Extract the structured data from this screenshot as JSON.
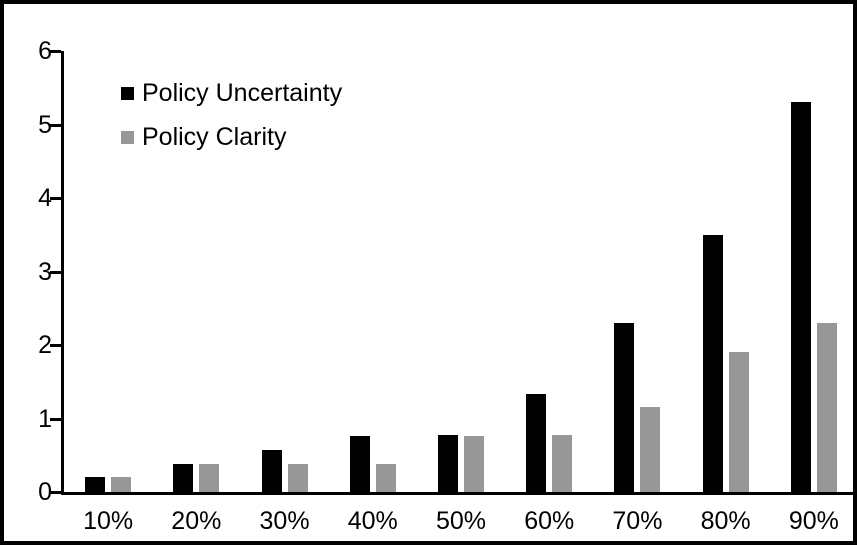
{
  "figure": {
    "background_color": "#ffffff",
    "frame_color": "#000000",
    "axis_color": "#000000",
    "text_color": "#000000"
  },
  "legend": {
    "items": [
      {
        "label": "Policy Uncertainty",
        "color": "#000000"
      },
      {
        "label": "Policy Clarity",
        "color": "#979797"
      }
    ]
  },
  "chart_data": {
    "type": "bar",
    "title": "",
    "xlabel": "",
    "ylabel": "",
    "categories": [
      "10%",
      "20%",
      "30%",
      "40%",
      "50%",
      "60%",
      "70%",
      "80%",
      "90%"
    ],
    "series": [
      {
        "name": "Policy Uncertainty",
        "color": "#000000",
        "values": [
          0.2,
          0.38,
          0.57,
          0.76,
          0.78,
          1.33,
          2.3,
          3.5,
          5.3
        ]
      },
      {
        "name": "Policy Clarity",
        "color": "#979797",
        "values": [
          0.2,
          0.38,
          0.38,
          0.38,
          0.76,
          0.77,
          1.15,
          1.9,
          2.3
        ]
      }
    ],
    "ylim": [
      0,
      6
    ],
    "yticks": [
      "0",
      "1",
      "2",
      "3",
      "4",
      "5",
      "6"
    ],
    "grid": false,
    "legend_position": "top-left-inside"
  }
}
